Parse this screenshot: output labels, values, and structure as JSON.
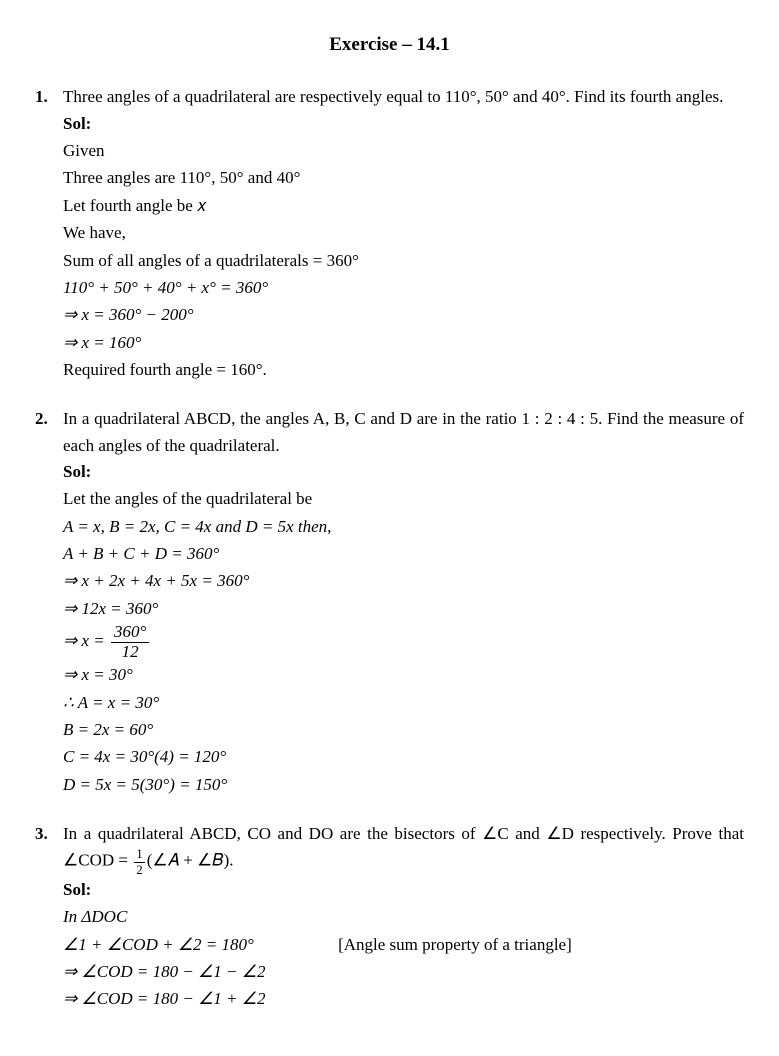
{
  "title": "Exercise – 14.1",
  "problems": [
    {
      "num": "1.",
      "question": "Three angles of a quadrilateral are respectively equal to 110°, 50° and 40°. Find its fourth angles.",
      "sol_label": "Sol:",
      "lines": [
        "Given",
        "Three angles are 110°, 50°  and  40°",
        "Let fourth angle be 𝑥",
        "We have,",
        "Sum of all angles of a quadrilaterals  = 360°",
        "110° + 50° + 40° + x° = 360°",
        "⇒ x = 360° − 200°",
        "⇒ x = 160°",
        "Required fourth angle  = 160°."
      ]
    },
    {
      "num": "2.",
      "question": "In a quadrilateral ABCD, the angles A, B, C and D are in the ratio 1 : 2 : 4 : 5. Find the measure of each angles of the quadrilateral.",
      "sol_label": "Sol:",
      "lines": [
        "Let the angles of the quadrilateral be",
        "A = x, B = 2x, C = 4x  and  D = 5x  then,",
        "A + B + C + D = 360°",
        "⇒ x + 2x + 4x + 5x = 360°",
        "⇒ 12x = 360°",
        "FRAC_LINE",
        "⇒ x = 30°",
        "∴ A = x = 30°",
        "B = 2x = 60°",
        "C = 4x = 30°(4) = 120°",
        "D = 5x = 5(30°) = 150°"
      ],
      "frac_top": "360°",
      "frac_bot": "12",
      "frac_prefix": "⇒ x ="
    },
    {
      "num": "3.",
      "question_pre": "In a quadrilateral ABCD, CO and DO are the bisectors of ∠C and ∠D respectively. Prove that ∠COD = ",
      "question_frac_top": "1",
      "question_frac_bot": "2",
      "question_post": "(∠𝐴 + ∠𝐵).",
      "sol_label": "Sol:",
      "lines": [
        "In  ΔDOC",
        "NOTE_LINE",
        "⇒ ∠COD = 180 − ∠1 − ∠2",
        "⇒ ∠COD = 180 − ∠1 + ∠2"
      ],
      "note_main": "∠1 + ∠COD + ∠2 = 180°",
      "note_side": "[Angle sum property of a triangle]"
    }
  ]
}
